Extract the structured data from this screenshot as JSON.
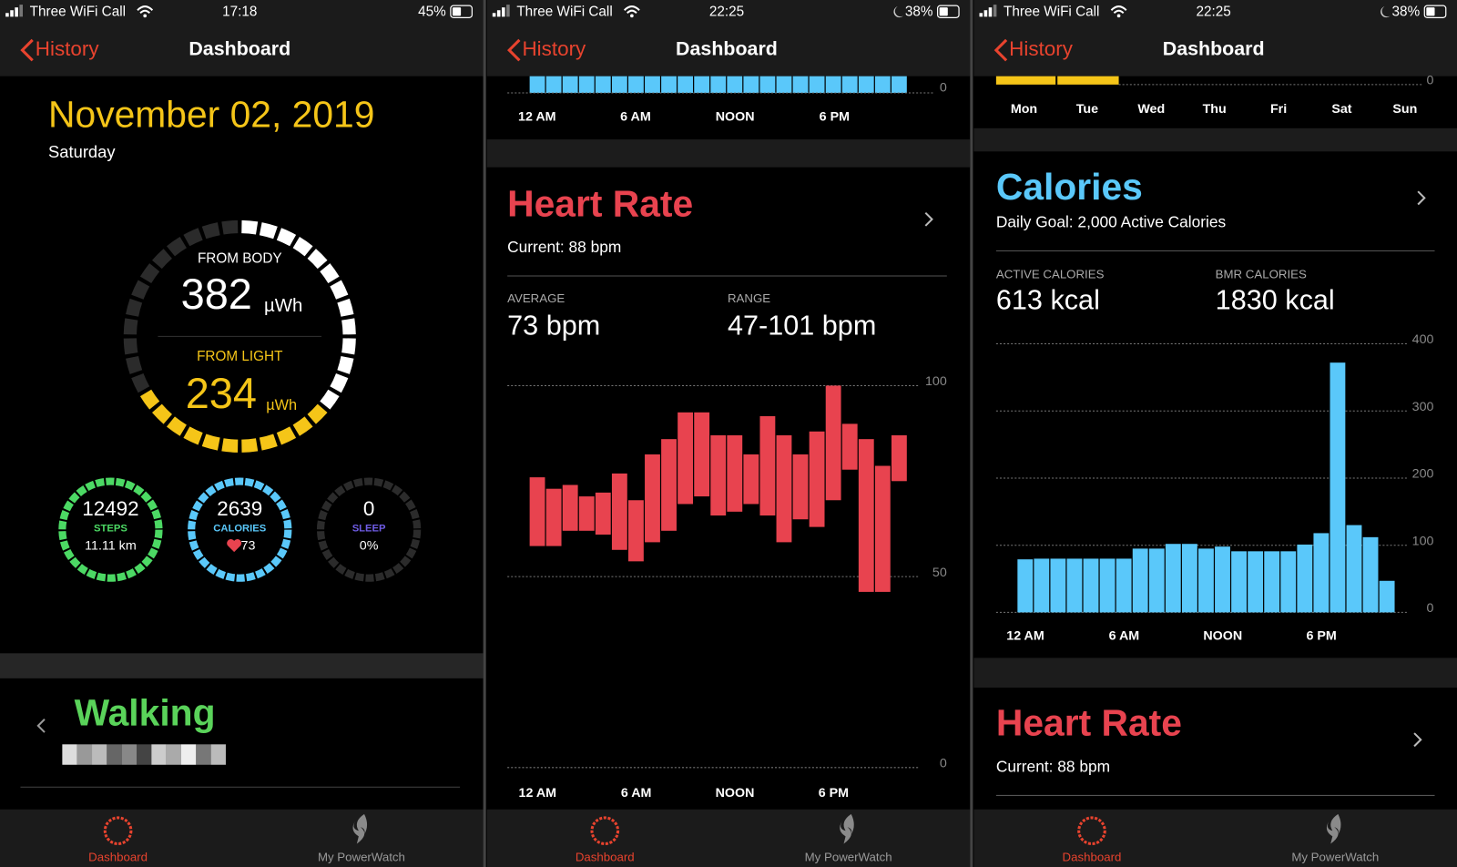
{
  "screens": [
    {
      "status": {
        "carrier": "Three WiFi Call",
        "time": "17:18",
        "battery": "45%"
      },
      "nav": {
        "back": "History",
        "title": "Dashboard"
      },
      "date": "November 02, 2019",
      "weekday": "Saturday",
      "ring": {
        "body_label": "FROM BODY",
        "body_value": 382,
        "body_unit": "µWh",
        "light_label": "FROM LIGHT",
        "light_value": 234,
        "light_unit": "µWh"
      },
      "small_rings": [
        {
          "value": 12492,
          "label": "STEPS",
          "sub": "11.11 km",
          "color": "#4cd964"
        },
        {
          "value": 2639,
          "label": "CALORIES",
          "sub": "73",
          "color": "#5ac8fa"
        },
        {
          "value": 0,
          "label": "SLEEP",
          "sub": "0%",
          "color": "#6f5ce6"
        }
      ],
      "activity": "Walking",
      "tabs": [
        "Dashboard",
        "My PowerWatch"
      ]
    },
    {
      "status": {
        "carrier": "Three WiFi Call",
        "time": "22:25",
        "battery": "38%"
      },
      "nav": {
        "back": "History",
        "title": "Dashboard"
      },
      "strip": {
        "yticks": [
          0
        ],
        "xlabels": [
          "12 AM",
          "6 AM",
          "NOON",
          "6 PM"
        ]
      },
      "heart_rate": {
        "title": "Heart Rate",
        "current": "Current: 88 bpm",
        "average_label": "AVERAGE",
        "average": "73 bpm",
        "range_label": "RANGE",
        "range": "47-101 bpm",
        "chart": {
          "type": "range",
          "color": "#e8434f",
          "categories": [
            "12 AM",
            null,
            null,
            null,
            null,
            null,
            "6 AM",
            null,
            null,
            null,
            null,
            null,
            "NOON",
            null,
            null,
            null,
            null,
            null,
            "6 PM",
            null,
            null,
            null,
            null
          ],
          "high": [
            76,
            73,
            74,
            71,
            72,
            77,
            70,
            82,
            86,
            93,
            93,
            87,
            87,
            82,
            92,
            87,
            82,
            88,
            100,
            90,
            86,
            79,
            87
          ],
          "low": [
            58,
            58,
            62,
            62,
            61,
            57,
            54,
            59,
            62,
            69,
            71,
            66,
            67,
            69,
            66,
            59,
            65,
            63,
            70,
            78,
            46,
            46,
            75
          ],
          "ylim": [
            0,
            100
          ],
          "yticks": [
            0,
            50,
            100
          ],
          "grid": true
        }
      },
      "tabs": [
        "Dashboard",
        "My PowerWatch"
      ]
    },
    {
      "status": {
        "carrier": "Three WiFi Call",
        "time": "22:25",
        "battery": "38%"
      },
      "nav": {
        "back": "History",
        "title": "Dashboard"
      },
      "strip": {
        "yticks": [
          0
        ],
        "days": [
          "Mon",
          "Tue",
          "Wed",
          "Thu",
          "Fri",
          "Sat",
          "Sun"
        ]
      },
      "calories": {
        "title": "Calories",
        "goal": "Daily Goal: 2,000 Active Calories",
        "active_label": "ACTIVE CALORIES",
        "active": "613 kcal",
        "bmr_label": "BMR CALORIES",
        "bmr": "1830 kcal",
        "chart": {
          "type": "bar",
          "color": "#5ac8fa",
          "categories": [
            "12 AM",
            null,
            null,
            null,
            null,
            null,
            "6 AM",
            null,
            null,
            null,
            null,
            null,
            "NOON",
            null,
            null,
            null,
            null,
            null,
            "6 PM",
            null,
            null,
            null,
            null
          ],
          "values": [
            79,
            80,
            80,
            80,
            80,
            80,
            80,
            95,
            95,
            102,
            102,
            95,
            98,
            91,
            91,
            91,
            91,
            101,
            118,
            372,
            130,
            112,
            47
          ],
          "ylim": [
            0,
            400
          ],
          "yticks": [
            0,
            100,
            200,
            300,
            400
          ],
          "grid": true
        }
      },
      "heart_rate": {
        "title": "Heart Rate",
        "current": "Current: 88 bpm"
      },
      "tabs": [
        "Dashboard",
        "My PowerWatch"
      ]
    }
  ]
}
